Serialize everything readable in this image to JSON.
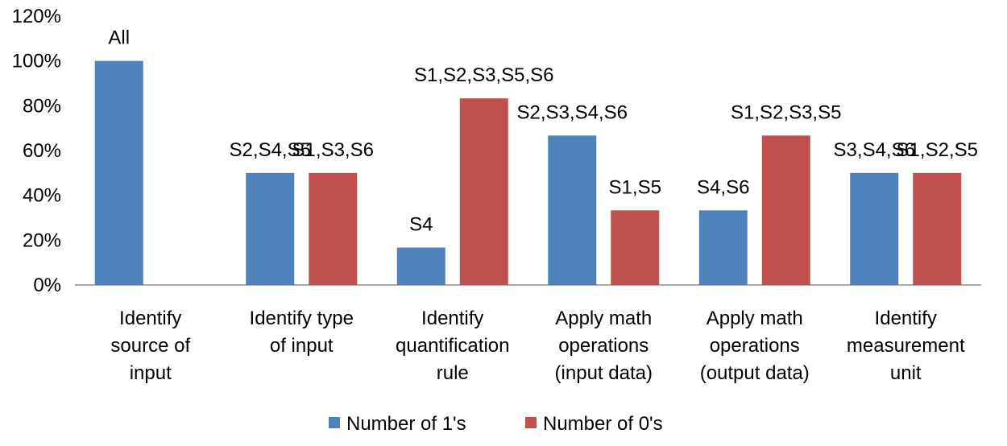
{
  "chart_data": {
    "type": "bar",
    "categories": [
      [
        "Identify",
        "source of",
        "input"
      ],
      [
        "Identify type",
        "of input"
      ],
      [
        "Identify",
        "quantification",
        "rule"
      ],
      [
        "Apply math",
        "operations",
        "(input data)"
      ],
      [
        "Apply math",
        "operations",
        "(output data)"
      ],
      [
        "Identify",
        "measurement",
        "unit"
      ]
    ],
    "series": [
      {
        "name": "Number of 1's",
        "color": "#4f81bd",
        "values": [
          100,
          50,
          16.7,
          66.7,
          33.3,
          50
        ],
        "labels": [
          "All",
          "S2,S4,S5",
          "S4",
          "S2,S3,S4,S6",
          "S4,S6",
          "S3,S4,S6"
        ]
      },
      {
        "name": "Number of 0's",
        "color": "#c0504d",
        "values": [
          0,
          50,
          83.3,
          33.3,
          66.7,
          50
        ],
        "labels": [
          "",
          "S1,S3,S6",
          "S1,S2,S3,S5,S6",
          "S1,S5",
          "S1,S2,S3,S5",
          "S1,S2,S5"
        ]
      }
    ],
    "yticks": [
      "0%",
      "20%",
      "40%",
      "60%",
      "80%",
      "100%",
      "120%"
    ],
    "ylim": [
      0,
      120
    ],
    "grid": false,
    "legend_position": "bottom"
  }
}
